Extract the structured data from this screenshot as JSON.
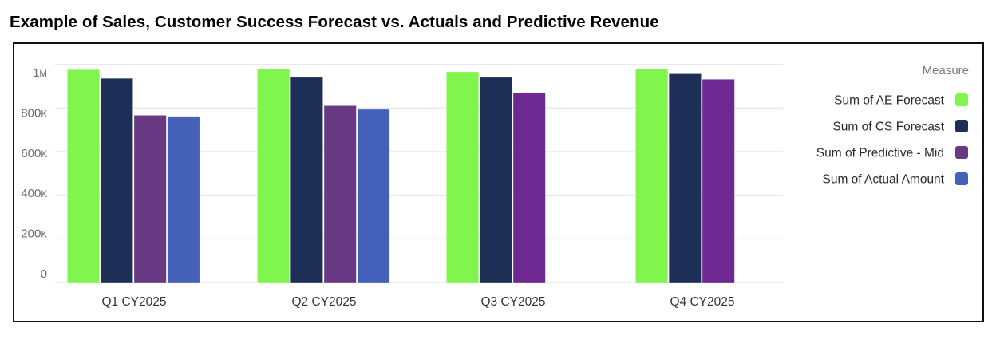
{
  "page": {
    "title": "Example of Sales, Customer Success Forecast vs. Actuals and Predictive Revenue"
  },
  "chart_data": {
    "type": "bar",
    "title": "Example of Sales, Customer Success Forecast vs. Actuals and Predictive Revenue",
    "xlabel": "",
    "ylabel": "",
    "categories": [
      "Q1 CY2025",
      "Q2 CY2025",
      "Q3 CY2025",
      "Q4 CY2025"
    ],
    "ylim": [
      0,
      1000000
    ],
    "yticks": [
      0,
      200000,
      400000,
      600000,
      800000,
      1000000
    ],
    "ytick_labels": [
      {
        "num": "0",
        "suffix": ""
      },
      {
        "num": "200",
        "suffix": "K"
      },
      {
        "num": "400",
        "suffix": "K"
      },
      {
        "num": "600",
        "suffix": "K"
      },
      {
        "num": "800",
        "suffix": "K"
      },
      {
        "num": "1",
        "suffix": "M"
      }
    ],
    "grid": true,
    "legend": {
      "title": "Measure",
      "placement": "right"
    },
    "series": [
      {
        "name": "Sum of AE Forecast",
        "color": "#80f54e",
        "values": [
          976000,
          978000,
          966000,
          978000
        ]
      },
      {
        "name": "Sum of CS Forecast",
        "color": "#1e2f57",
        "values": [
          936000,
          941000,
          941000,
          957000
        ]
      },
      {
        "name": "Sum of Predictive - Mid",
        "color": "#683a83",
        "alt_color": "#6d2891",
        "values": [
          767000,
          811000,
          871000,
          932000
        ]
      },
      {
        "name": "Sum of Actual Amount",
        "color": "#4460b9",
        "values": [
          762000,
          794000,
          null,
          null
        ]
      }
    ]
  }
}
